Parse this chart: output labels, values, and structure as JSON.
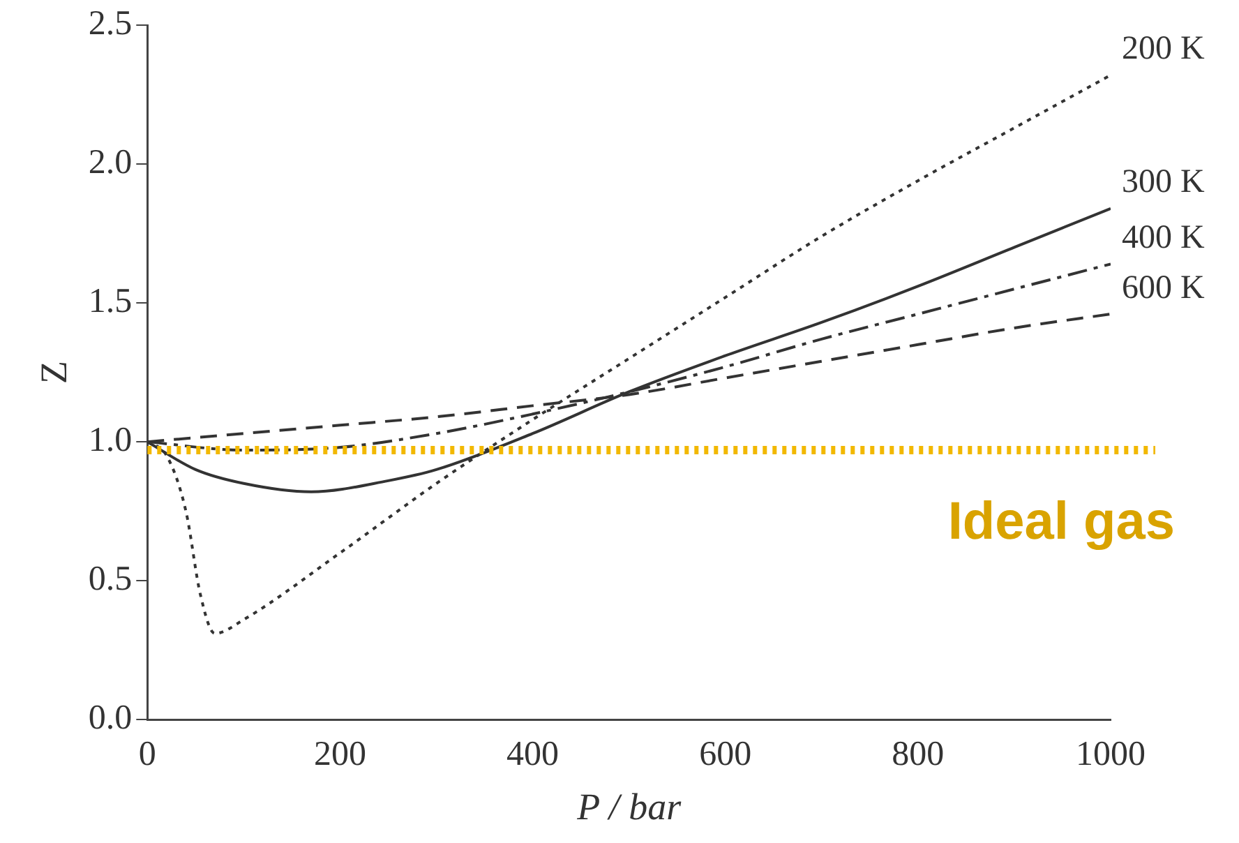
{
  "chart_data": {
    "type": "line",
    "xlabel": "P / bar",
    "ylabel": "Z",
    "xlim": [
      0,
      1000
    ],
    "xticks": [
      0,
      200,
      400,
      600,
      800,
      1000
    ],
    "ylim": [
      0,
      2.5
    ],
    "yticks": [
      {
        "value": 0,
        "label": "0.0"
      },
      {
        "value": 0.5,
        "label": "0.5"
      },
      {
        "value": 1,
        "label": "1.0"
      },
      {
        "value": 1.5,
        "label": "1.5"
      },
      {
        "value": 2,
        "label": "2.0"
      },
      {
        "value": 2.5,
        "label": "2.5"
      }
    ],
    "grid": false,
    "legend": false,
    "marker": "none",
    "series": [
      {
        "name": "200 K",
        "color": "#333333",
        "line_style": "dotted",
        "x": [
          0,
          20,
          40,
          55,
          70,
          100,
          200,
          300,
          400,
          500,
          600,
          700,
          800,
          900,
          1000
        ],
        "values": [
          1.0,
          0.95,
          0.75,
          0.45,
          0.31,
          0.36,
          0.6,
          0.85,
          1.08,
          1.3,
          1.52,
          1.74,
          1.94,
          2.13,
          2.32
        ]
      },
      {
        "name": "300 K",
        "color": "#333333",
        "line_style": "solid",
        "x": [
          0,
          50,
          100,
          170,
          250,
          300,
          400,
          500,
          600,
          700,
          800,
          900,
          1000
        ],
        "values": [
          1.0,
          0.9,
          0.85,
          0.82,
          0.86,
          0.9,
          1.03,
          1.18,
          1.31,
          1.43,
          1.56,
          1.7,
          1.84
        ]
      },
      {
        "name": "400 K",
        "color": "#333333",
        "line_style": "dashdot",
        "x": [
          0,
          100,
          200,
          300,
          400,
          500,
          600,
          700,
          800,
          900,
          1000
        ],
        "values": [
          1.0,
          0.97,
          0.98,
          1.03,
          1.1,
          1.18,
          1.27,
          1.37,
          1.46,
          1.55,
          1.64
        ]
      },
      {
        "name": "600 K",
        "color": "#333333",
        "line_style": "dashed",
        "x": [
          0,
          100,
          200,
          300,
          400,
          500,
          600,
          700,
          800,
          900,
          1000
        ],
        "values": [
          1.0,
          1.03,
          1.06,
          1.09,
          1.13,
          1.17,
          1.23,
          1.29,
          1.35,
          1.41,
          1.46
        ]
      }
    ],
    "ref_lines": [
      {
        "axis": "y",
        "value": 0.97,
        "label": "Ideal gas",
        "color": "#f2b800",
        "line_style": "dotted"
      }
    ]
  }
}
